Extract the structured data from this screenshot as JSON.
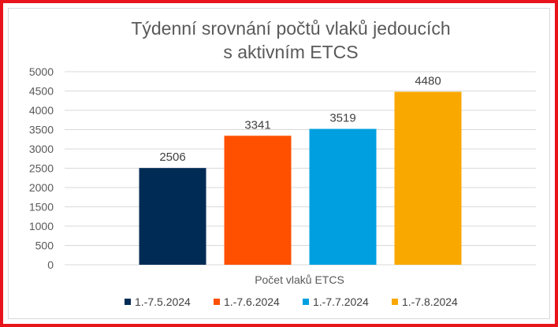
{
  "chart_data": {
    "type": "bar",
    "title_lines": [
      "Týdenní srovnání počtů vlaků jedoucích",
      "s aktivním ETCS"
    ],
    "category": "Počet vlaků ETCS",
    "ylim": [
      0,
      5000
    ],
    "ytick_step": 500,
    "yticks": [
      "0",
      "500",
      "1000",
      "1500",
      "2000",
      "2500",
      "3000",
      "3500",
      "4000",
      "4500",
      "5000"
    ],
    "grid": true,
    "legend_position": "bottom",
    "series": [
      {
        "name": "1.-7.5.2024",
        "value": 2506,
        "label": "2506",
        "color": "#002b55"
      },
      {
        "name": "1.-7.6.2024",
        "value": 3341,
        "label": "3341",
        "color": "#ff5000"
      },
      {
        "name": "1.-7.7.2024",
        "value": 3519,
        "label": "3519",
        "color": "#00a0e0"
      },
      {
        "name": "1.-7.8.2024",
        "value": 4480,
        "label": "4480",
        "color": "#f9a800"
      }
    ]
  }
}
